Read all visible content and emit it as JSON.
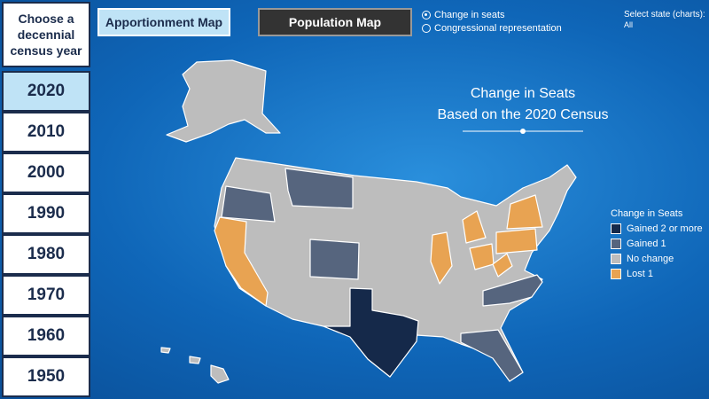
{
  "sidebar": {
    "title": "Choose a decennial census year",
    "years": [
      "2020",
      "2010",
      "2000",
      "1990",
      "1980",
      "1970",
      "1960",
      "1950"
    ],
    "selected": 0
  },
  "tabs": {
    "items": [
      "Apportionment Map",
      "Population Map"
    ],
    "active": 0
  },
  "radio": {
    "options": [
      "Change in seats",
      "Congressional representation"
    ],
    "selected": 0
  },
  "filter": {
    "label": "Select state (charts):",
    "value": "All"
  },
  "map": {
    "title": "Change in Seats",
    "subtitle": "Based on the 2020 Census"
  },
  "legend": {
    "title": "Change in Seats",
    "items": [
      {
        "label": "Gained 2 or more",
        "color": "#15294a"
      },
      {
        "label": "Gained 1",
        "color": "#56657e"
      },
      {
        "label": "No change",
        "color": "#bdbdbd"
      },
      {
        "label": "Lost 1",
        "color": "#e8a352"
      }
    ]
  }
}
